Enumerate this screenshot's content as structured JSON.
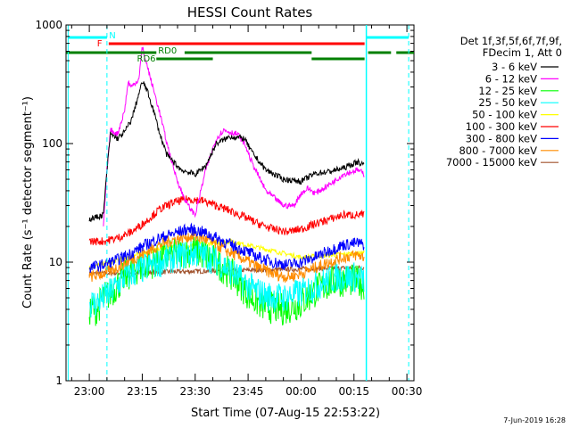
{
  "chart_data": {
    "type": "line",
    "title": "HESSI Count Rates",
    "xlabel": "Start Time (07-Aug-15 22:53:22)",
    "ylabel": "Count Rate (s⁻¹ detector segment⁻¹)",
    "y_scale": "log",
    "ylim": [
      1,
      1000
    ],
    "y_ticks": [
      "1",
      "10",
      "100",
      "1000"
    ],
    "x_ticks": [
      "23:00",
      "23:15",
      "23:30",
      "23:45",
      "00:00",
      "00:15",
      "00:30"
    ],
    "x_tick_minutes": [
      0,
      15,
      30,
      45,
      60,
      75,
      90
    ],
    "xlim_minutes": [
      -6.6,
      92
    ],
    "legend_header": [
      "Det 1f,3f,5f,6f,7f,9f,",
      "FDecim 1, Att 0"
    ],
    "legend_position": "right",
    "series": [
      {
        "name": "3 - 6 keV",
        "color": "#000000",
        "x": [
          0,
          4,
          5,
          6,
          8,
          10,
          12,
          14,
          15,
          16,
          18,
          20,
          22,
          26,
          30,
          33,
          36,
          40,
          44,
          46,
          50,
          55,
          60,
          64,
          68,
          72,
          76,
          78
        ],
        "y": [
          23,
          25,
          60,
          120,
          110,
          125,
          160,
          260,
          330,
          300,
          200,
          120,
          80,
          60,
          55,
          65,
          100,
          115,
          110,
          85,
          60,
          50,
          48,
          56,
          58,
          62,
          70,
          66
        ]
      },
      {
        "name": "6 - 12 keV",
        "color": "#ff00ff",
        "x": [
          4,
          5,
          6,
          8,
          10,
          11,
          12,
          14,
          15,
          16,
          18,
          20,
          22,
          24,
          26,
          28,
          30,
          33,
          36,
          38,
          42,
          44,
          46,
          50,
          55,
          58,
          60,
          62,
          64,
          68,
          72,
          76,
          78
        ],
        "y": [
          20,
          60,
          130,
          120,
          190,
          330,
          300,
          350,
          650,
          500,
          300,
          180,
          100,
          60,
          40,
          30,
          25,
          60,
          110,
          130,
          120,
          100,
          70,
          40,
          30,
          30,
          38,
          42,
          38,
          45,
          55,
          60,
          55
        ]
      },
      {
        "name": "12 - 25 keV",
        "color": "#00ff00",
        "x": [
          0,
          2,
          4,
          6,
          8,
          10,
          14,
          18,
          22,
          26,
          30,
          34,
          38,
          42,
          46,
          50,
          55,
          60,
          65,
          70,
          75,
          78
        ],
        "y": [
          4,
          4,
          5,
          5.5,
          6.5,
          7.5,
          9,
          10,
          11,
          12,
          12.5,
          11,
          9,
          7,
          5,
          4.2,
          4,
          4.5,
          6,
          7,
          7,
          6.5
        ]
      },
      {
        "name": "25 - 50 keV",
        "color": "#00ffff",
        "x": [
          0,
          2,
          4,
          6,
          8,
          10,
          14,
          18,
          22,
          26,
          30,
          34,
          38,
          42,
          46,
          50,
          55,
          60,
          65,
          70,
          75,
          78
        ],
        "y": [
          4.5,
          4.5,
          5,
          5.5,
          6.5,
          7.5,
          8.5,
          9.5,
          10.5,
          11.5,
          12,
          11,
          9.5,
          7.5,
          6,
          5.2,
          5,
          5.5,
          6.5,
          7.5,
          7.5,
          7
        ]
      },
      {
        "name": "50 - 100 keV",
        "color": "#ffff00",
        "x": [
          0,
          20,
          40,
          60,
          78
        ],
        "y": [
          9,
          13,
          15,
          11,
          12
        ]
      },
      {
        "name": "100 - 300 keV",
        "color": "#ff0000",
        "x": [
          0,
          4,
          8,
          12,
          16,
          20,
          24,
          28,
          32,
          36,
          40,
          44,
          48,
          52,
          56,
          60,
          64,
          68,
          72,
          76,
          78
        ],
        "y": [
          15,
          15,
          16,
          18,
          22,
          28,
          32,
          34,
          33,
          30,
          27,
          24,
          21,
          19,
          18,
          19,
          21,
          23,
          25,
          25,
          25
        ]
      },
      {
        "name": "300 - 800 keV",
        "color": "#0000ff",
        "x": [
          0,
          4,
          8,
          12,
          16,
          20,
          24,
          28,
          32,
          36,
          40,
          44,
          48,
          52,
          56,
          60,
          64,
          68,
          72,
          76,
          78
        ],
        "y": [
          9,
          9.5,
          10.5,
          12,
          14,
          16,
          17.5,
          19,
          18,
          16,
          14,
          12.5,
          11,
          10,
          9.5,
          10,
          11,
          12.5,
          14,
          14.5,
          14
        ]
      },
      {
        "name": "800 - 7000 keV",
        "color": "#ff8c00",
        "x": [
          0,
          4,
          8,
          12,
          16,
          20,
          24,
          28,
          32,
          36,
          40,
          44,
          48,
          52,
          56,
          60,
          64,
          68,
          72,
          76,
          78
        ],
        "y": [
          7.5,
          8,
          9,
          10.5,
          12,
          14,
          15.5,
          16.5,
          16,
          14,
          12,
          10.5,
          9,
          8,
          7.5,
          8,
          9,
          10,
          11,
          11.5,
          11
        ]
      },
      {
        "name": "7000 - 15000 keV",
        "color": "#a0522d",
        "x": [
          0,
          78
        ],
        "y": [
          8,
          9
        ]
      }
    ],
    "annotations": [
      {
        "text": "N",
        "color": "#00ffff"
      },
      {
        "text": "F",
        "color": "#ff0000"
      },
      {
        "text": "RD0",
        "color": "#008000"
      },
      {
        "text": "RD6",
        "color": "#008000"
      }
    ],
    "timestamp": "7-Jun-2019 16:28"
  }
}
